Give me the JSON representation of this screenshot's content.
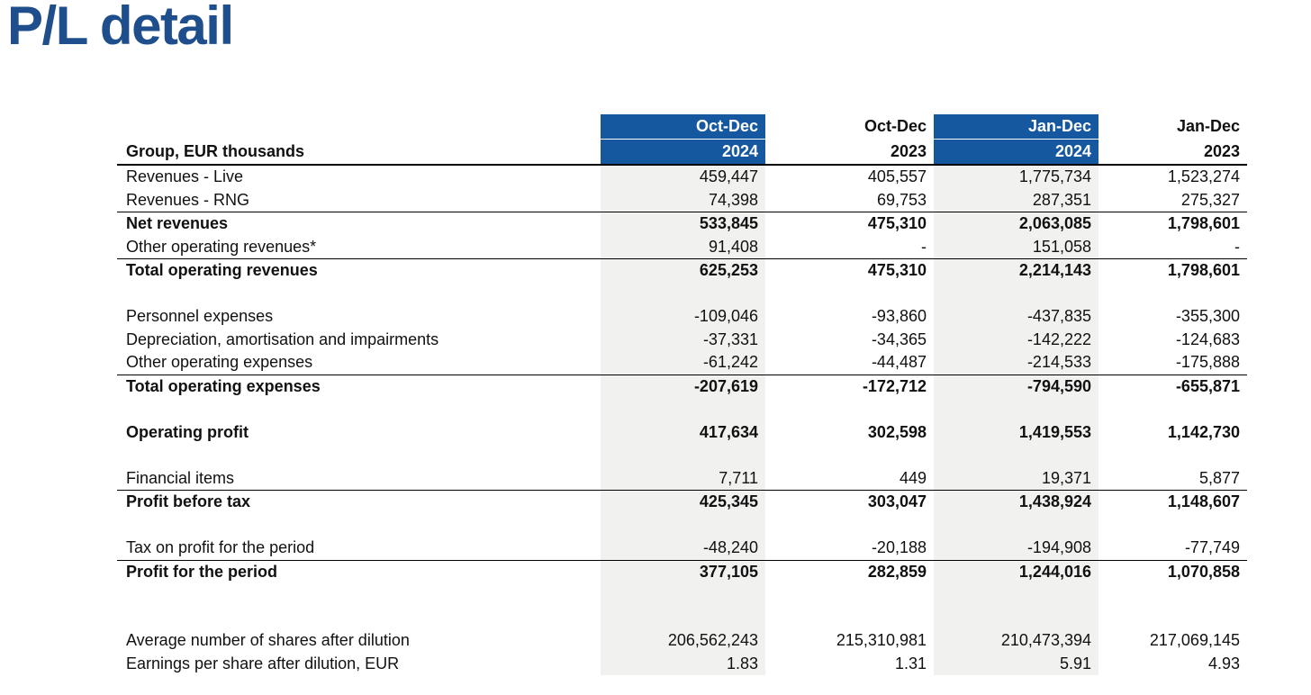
{
  "page": {
    "title": "P/L detail"
  },
  "colors": {
    "title_blue": "#1f4e8c",
    "header_cell_blue": "#1558a0",
    "shaded_column_gray": "#f1f1f0"
  },
  "table": {
    "corner_label": "Group, EUR thousands",
    "columns": [
      {
        "line1": "Oct-Dec",
        "line2": "2024",
        "highlighted": true
      },
      {
        "line1": "Oct-Dec",
        "line2": "2023",
        "highlighted": false
      },
      {
        "line1": "Jan-Dec",
        "line2": "2024",
        "highlighted": true
      },
      {
        "line1": "Jan-Dec",
        "line2": "2023",
        "highlighted": false
      }
    ],
    "rows": [
      {
        "label": "Revenues - Live",
        "values": [
          "459,447",
          "405,557",
          "1,775,734",
          "1,523,274"
        ],
        "bold": false,
        "line_below": false
      },
      {
        "label": "Revenues - RNG",
        "values": [
          "74,398",
          "69,753",
          "287,351",
          "275,327"
        ],
        "bold": false,
        "line_below": true
      },
      {
        "label": "Net revenues",
        "values": [
          "533,845",
          "475,310",
          "2,063,085",
          "1,798,601"
        ],
        "bold": true,
        "line_below": false
      },
      {
        "label": "Other operating revenues*",
        "values": [
          "91,408",
          "-",
          "151,058",
          "-"
        ],
        "bold": false,
        "line_below": true
      },
      {
        "label": "Total operating revenues",
        "values": [
          "625,253",
          "475,310",
          "2,214,143",
          "1,798,601"
        ],
        "bold": true,
        "line_below": false
      },
      {
        "spacer": true
      },
      {
        "label": "Personnel expenses",
        "values": [
          "-109,046",
          "-93,860",
          "-437,835",
          "-355,300"
        ],
        "bold": false,
        "line_below": false
      },
      {
        "label": "Depreciation, amortisation and impairments",
        "values": [
          "-37,331",
          "-34,365",
          "-142,222",
          "-124,683"
        ],
        "bold": false,
        "line_below": false
      },
      {
        "label": "Other operating expenses",
        "values": [
          "-61,242",
          "-44,487",
          "-214,533",
          "-175,888"
        ],
        "bold": false,
        "line_below": true
      },
      {
        "label": "Total operating expenses",
        "values": [
          "-207,619",
          "-172,712",
          "-794,590",
          "-655,871"
        ],
        "bold": true,
        "line_below": false
      },
      {
        "spacer": true
      },
      {
        "label": "Operating profit",
        "values": [
          "417,634",
          "302,598",
          "1,419,553",
          "1,142,730"
        ],
        "bold": true,
        "line_below": false
      },
      {
        "spacer": true
      },
      {
        "label": "Financial items",
        "values": [
          "7,711",
          "449",
          "19,371",
          "5,877"
        ],
        "bold": false,
        "line_below": true
      },
      {
        "label": "Profit before tax",
        "values": [
          "425,345",
          "303,047",
          "1,438,924",
          "1,148,607"
        ],
        "bold": true,
        "line_below": false
      },
      {
        "spacer": true
      },
      {
        "label": "Tax on profit for the period",
        "values": [
          "-48,240",
          "-20,188",
          "-194,908",
          "-77,749"
        ],
        "bold": false,
        "line_below": true
      },
      {
        "label": "Profit for the period",
        "values": [
          "377,105",
          "282,859",
          "1,244,016",
          "1,070,858"
        ],
        "bold": true,
        "line_below": false
      },
      {
        "spacer": true
      },
      {
        "spacer": true
      },
      {
        "label": "Average number of shares after dilution",
        "values": [
          "206,562,243",
          "215,310,981",
          "210,473,394",
          "217,069,145"
        ],
        "bold": false,
        "line_below": false
      },
      {
        "label": "Earnings per share after dilution, EUR",
        "values": [
          "1.83",
          "1.31",
          "5.91",
          "4.93"
        ],
        "bold": false,
        "line_below": false
      }
    ]
  }
}
